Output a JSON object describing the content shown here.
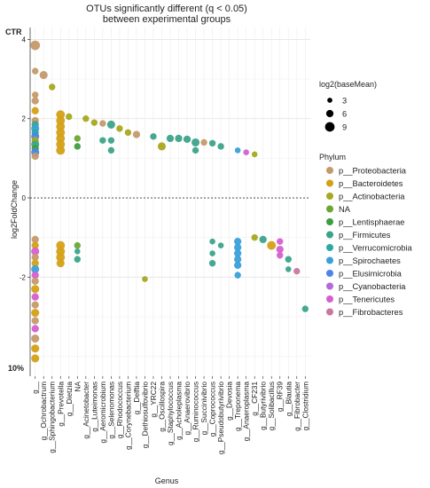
{
  "chart_data": {
    "type": "scatter",
    "title_line1": "OTUs significantly different (q < 0.05)",
    "title_line2": "between experimental groups",
    "xlabel": "Genus",
    "ylabel": "log2FoldChange",
    "ylim": [
      -4.5,
      4.3
    ],
    "yticks": [
      -2,
      0,
      2,
      4
    ],
    "top_label": "CTR",
    "bottom_label": "10%",
    "grid": true,
    "reference_line": 0,
    "categories": [
      "g__",
      "g__Ochrobactrum",
      "g__Sphingobacterium",
      "g__Prevotella",
      "g__Dietzia",
      "NA",
      "g__Acinetobacter",
      "g__Luteimonas",
      "g__Aeromicrobium",
      "g__Selenomonas",
      "g__Rhodococcus",
      "g__Corynebacterium",
      "g__Delftia",
      "g__Dethiosulfovibrio",
      "g__YRC22",
      "g__Oscillospira",
      "g__Staphylococcus",
      "g__Acholeplasma",
      "g__Anaerovibrio",
      "g__Ruminococcus",
      "g__Succinivibrio",
      "g__Coprococcus",
      "g__Pseudobutyrivibrio",
      "g__Devosia",
      "g__Treponema",
      "g__Anaeroplasma",
      "g__CF231",
      "g__Butyrivibrio",
      "g__Solibacillus",
      "g__RF39",
      "g__Blautia",
      "g__Fibrobacter",
      "g__Clostridium"
    ],
    "legend_size": {
      "title": "log2(baseMean)",
      "entries": [
        {
          "label": "3",
          "value": 3
        },
        {
          "label": "6",
          "value": 6
        },
        {
          "label": "9",
          "value": 9
        }
      ]
    },
    "legend_color": {
      "title": "Phylum",
      "entries": [
        {
          "label": "p__Proteobacteria",
          "color": "#c49a6c"
        },
        {
          "label": "p__Bacteroidetes",
          "color": "#d4a017"
        },
        {
          "label": "p__Actinobacteria",
          "color": "#a8a820"
        },
        {
          "label": "NA",
          "color": "#6aa832"
        },
        {
          "label": "p__Lentisphaerae",
          "color": "#3f9e3f"
        },
        {
          "label": "p__Firmicutes",
          "color": "#3ca38a"
        },
        {
          "label": "p__Verrucomicrobia",
          "color": "#2ba9a9"
        },
        {
          "label": "p__Spirochaetes",
          "color": "#3aa0d8"
        },
        {
          "label": "p__Elusimicrobia",
          "color": "#4a86e8"
        },
        {
          "label": "p__Cyanobacteria",
          "color": "#b36ad8"
        },
        {
          "label": "p__Tenericutes",
          "color": "#d65fcf"
        },
        {
          "label": "p__Fibrobacteres",
          "color": "#c8779e"
        }
      ]
    },
    "points": [
      {
        "x": 0,
        "y": 3.85,
        "size": 9,
        "phylum": "p__Proteobacteria"
      },
      {
        "x": 0,
        "y": 3.2,
        "size": 5,
        "phylum": "p__Proteobacteria"
      },
      {
        "x": 0,
        "y": 2.6,
        "size": 5,
        "phylum": "p__Proteobacteria"
      },
      {
        "x": 0,
        "y": 2.45,
        "size": 6,
        "phylum": "p__Proteobacteria"
      },
      {
        "x": 0,
        "y": 2.2,
        "size": 6,
        "phylum": "p__Bacteroidetes"
      },
      {
        "x": 0,
        "y": 1.95,
        "size": 6,
        "phylum": "p__Proteobacteria"
      },
      {
        "x": 0,
        "y": 1.85,
        "size": 6,
        "phylum": "p__Firmicutes"
      },
      {
        "x": 0,
        "y": 1.75,
        "size": 7,
        "phylum": "p__Spirochaetes"
      },
      {
        "x": 0,
        "y": 1.65,
        "size": 6,
        "phylum": "p__Verrucomicrobia"
      },
      {
        "x": 0,
        "y": 1.55,
        "size": 7,
        "phylum": "p__Elusimicrobia"
      },
      {
        "x": 0,
        "y": 1.45,
        "size": 6,
        "phylum": "p__Actinobacteria"
      },
      {
        "x": 0,
        "y": 1.35,
        "size": 7,
        "phylum": "p__Firmicutes"
      },
      {
        "x": 0,
        "y": 1.25,
        "size": 6,
        "phylum": "p__Lentisphaerae"
      },
      {
        "x": 0,
        "y": 1.15,
        "size": 7,
        "phylum": "p__Elusimicrobia"
      },
      {
        "x": 0,
        "y": 1.05,
        "size": 6,
        "phylum": "p__Proteobacteria"
      },
      {
        "x": 0,
        "y": -1.05,
        "size": 6,
        "phylum": "p__Proteobacteria"
      },
      {
        "x": 0,
        "y": -1.2,
        "size": 6,
        "phylum": "p__Bacteroidetes"
      },
      {
        "x": 0,
        "y": -1.35,
        "size": 7,
        "phylum": "p__Tenericutes"
      },
      {
        "x": 0,
        "y": -1.5,
        "size": 6,
        "phylum": "p__Proteobacteria"
      },
      {
        "x": 0,
        "y": -1.65,
        "size": 6,
        "phylum": "p__Bacteroidetes"
      },
      {
        "x": 0,
        "y": -1.8,
        "size": 7,
        "phylum": "p__Spirochaetes"
      },
      {
        "x": 0,
        "y": -1.95,
        "size": 6,
        "phylum": "p__Tenericutes"
      },
      {
        "x": 0,
        "y": -2.1,
        "size": 6,
        "phylum": "p__Proteobacteria"
      },
      {
        "x": 0,
        "y": -2.3,
        "size": 7,
        "phylum": "p__Bacteroidetes"
      },
      {
        "x": 0,
        "y": -2.5,
        "size": 6,
        "phylum": "p__Tenericutes"
      },
      {
        "x": 0,
        "y": -2.7,
        "size": 6,
        "phylum": "p__Proteobacteria"
      },
      {
        "x": 0,
        "y": -2.9,
        "size": 7,
        "phylum": "p__Bacteroidetes"
      },
      {
        "x": 0,
        "y": -3.1,
        "size": 6,
        "phylum": "p__Proteobacteria"
      },
      {
        "x": 0,
        "y": -3.3,
        "size": 6,
        "phylum": "p__Tenericutes"
      },
      {
        "x": 0,
        "y": -3.55,
        "size": 7,
        "phylum": "p__Proteobacteria"
      },
      {
        "x": 0,
        "y": -3.8,
        "size": 7,
        "phylum": "p__Bacteroidetes"
      },
      {
        "x": 0,
        "y": -4.05,
        "size": 7,
        "phylum": "p__Bacteroidetes"
      },
      {
        "x": 1,
        "y": 3.1,
        "size": 7,
        "phylum": "p__Proteobacteria"
      },
      {
        "x": 2,
        "y": 2.8,
        "size": 5,
        "phylum": "p__Actinobacteria"
      },
      {
        "x": 3,
        "y": 2.1,
        "size": 8,
        "phylum": "p__Bacteroidetes"
      },
      {
        "x": 3,
        "y": 1.95,
        "size": 8,
        "phylum": "p__Bacteroidetes"
      },
      {
        "x": 3,
        "y": 1.8,
        "size": 8,
        "phylum": "p__Bacteroidetes"
      },
      {
        "x": 3,
        "y": 1.65,
        "size": 8,
        "phylum": "p__Bacteroidetes"
      },
      {
        "x": 3,
        "y": 1.5,
        "size": 8,
        "phylum": "p__Bacteroidetes"
      },
      {
        "x": 3,
        "y": 1.35,
        "size": 8,
        "phylum": "p__Bacteroidetes"
      },
      {
        "x": 3,
        "y": 1.2,
        "size": 8,
        "phylum": "p__Bacteroidetes"
      },
      {
        "x": 3,
        "y": -1.2,
        "size": 8,
        "phylum": "p__Bacteroidetes"
      },
      {
        "x": 3,
        "y": -1.35,
        "size": 8,
        "phylum": "p__Bacteroidetes"
      },
      {
        "x": 3,
        "y": -1.5,
        "size": 8,
        "phylum": "p__Bacteroidetes"
      },
      {
        "x": 3,
        "y": -1.65,
        "size": 7,
        "phylum": "p__Bacteroidetes"
      },
      {
        "x": 4,
        "y": 2.05,
        "size": 5,
        "phylum": "p__Actinobacteria"
      },
      {
        "x": 5,
        "y": 1.5,
        "size": 5,
        "phylum": "NA"
      },
      {
        "x": 5,
        "y": 1.3,
        "size": 5,
        "phylum": "p__Lentisphaerae"
      },
      {
        "x": 5,
        "y": -1.2,
        "size": 5,
        "phylum": "NA"
      },
      {
        "x": 5,
        "y": -1.35,
        "size": 4,
        "phylum": "p__Firmicutes"
      },
      {
        "x": 5,
        "y": -1.55,
        "size": 5,
        "phylum": "p__Firmicutes"
      },
      {
        "x": 6,
        "y": 2.0,
        "size": 5,
        "phylum": "p__Actinobacteria"
      },
      {
        "x": 7,
        "y": 1.9,
        "size": 5,
        "phylum": "p__Actinobacteria"
      },
      {
        "x": 8,
        "y": 1.88,
        "size": 5,
        "phylum": "p__Proteobacteria"
      },
      {
        "x": 8,
        "y": 1.45,
        "size": 5,
        "phylum": "p__Firmicutes"
      },
      {
        "x": 9,
        "y": 1.85,
        "size": 7,
        "phylum": "p__Firmicutes"
      },
      {
        "x": 9,
        "y": 1.45,
        "size": 5,
        "phylum": "p__Firmicutes"
      },
      {
        "x": 9,
        "y": 1.2,
        "size": 5,
        "phylum": "p__Firmicutes"
      },
      {
        "x": 10,
        "y": 1.75,
        "size": 5,
        "phylum": "p__Actinobacteria"
      },
      {
        "x": 11,
        "y": 1.65,
        "size": 5,
        "phylum": "p__Actinobacteria"
      },
      {
        "x": 12,
        "y": 1.6,
        "size": 6,
        "phylum": "p__Proteobacteria"
      },
      {
        "x": 13,
        "y": -2.05,
        "size": 4,
        "phylum": "p__Actinobacteria"
      },
      {
        "x": 14,
        "y": 1.55,
        "size": 5,
        "phylum": "p__Firmicutes"
      },
      {
        "x": 15,
        "y": 1.3,
        "size": 7,
        "phylum": "p__Actinobacteria"
      },
      {
        "x": 16,
        "y": 1.5,
        "size": 6,
        "phylum": "p__Firmicutes"
      },
      {
        "x": 17,
        "y": 1.5,
        "size": 6,
        "phylum": "p__Firmicutes"
      },
      {
        "x": 18,
        "y": 1.48,
        "size": 6,
        "phylum": "p__Firmicutes"
      },
      {
        "x": 19,
        "y": 1.4,
        "size": 7,
        "phylum": "p__Firmicutes"
      },
      {
        "x": 19,
        "y": 1.2,
        "size": 5,
        "phylum": "p__Firmicutes"
      },
      {
        "x": 20,
        "y": 1.4,
        "size": 5,
        "phylum": "p__Proteobacteria"
      },
      {
        "x": 21,
        "y": 1.38,
        "size": 5,
        "phylum": "p__Firmicutes"
      },
      {
        "x": 21,
        "y": -1.1,
        "size": 4,
        "phylum": "p__Firmicutes"
      },
      {
        "x": 21,
        "y": -1.4,
        "size": 4,
        "phylum": "p__Firmicutes"
      },
      {
        "x": 21,
        "y": -1.65,
        "size": 5,
        "phylum": "p__Firmicutes"
      },
      {
        "x": 22,
        "y": 1.3,
        "size": 5,
        "phylum": "p__Firmicutes"
      },
      {
        "x": 22,
        "y": -1.2,
        "size": 4,
        "phylum": "p__Firmicutes"
      },
      {
        "x": 24,
        "y": 1.2,
        "size": 4,
        "phylum": "p__Spirochaetes"
      },
      {
        "x": 24,
        "y": -1.1,
        "size": 6,
        "phylum": "p__Spirochaetes"
      },
      {
        "x": 24,
        "y": -1.25,
        "size": 6,
        "phylum": "p__Spirochaetes"
      },
      {
        "x": 24,
        "y": -1.4,
        "size": 6,
        "phylum": "p__Spirochaetes"
      },
      {
        "x": 24,
        "y": -1.55,
        "size": 6,
        "phylum": "p__Spirochaetes"
      },
      {
        "x": 24,
        "y": -1.7,
        "size": 6,
        "phylum": "p__Spirochaetes"
      },
      {
        "x": 24,
        "y": -1.95,
        "size": 5,
        "phylum": "p__Spirochaetes"
      },
      {
        "x": 25,
        "y": 1.15,
        "size": 4,
        "phylum": "p__Tenericutes"
      },
      {
        "x": 26,
        "y": 1.1,
        "size": 4,
        "phylum": "p__Actinobacteria"
      },
      {
        "x": 26,
        "y": -1.0,
        "size": 5,
        "phylum": "p__Actinobacteria"
      },
      {
        "x": 27,
        "y": -1.05,
        "size": 6,
        "phylum": "p__Firmicutes"
      },
      {
        "x": 28,
        "y": -1.2,
        "size": 8,
        "phylum": "p__Bacteroidetes"
      },
      {
        "x": 29,
        "y": -1.1,
        "size": 5,
        "phylum": "p__Tenericutes"
      },
      {
        "x": 29,
        "y": -1.3,
        "size": 6,
        "phylum": "p__Tenericutes"
      },
      {
        "x": 29,
        "y": -1.45,
        "size": 5,
        "phylum": "p__Tenericutes"
      },
      {
        "x": 30,
        "y": -1.55,
        "size": 5,
        "phylum": "p__Firmicutes"
      },
      {
        "x": 30,
        "y": -1.8,
        "size": 4,
        "phylum": "p__Firmicutes"
      },
      {
        "x": 31,
        "y": -1.85,
        "size": 5,
        "phylum": "p__Fibrobacteres"
      },
      {
        "x": 32,
        "y": -2.8,
        "size": 5,
        "phylum": "p__Firmicutes"
      }
    ]
  }
}
